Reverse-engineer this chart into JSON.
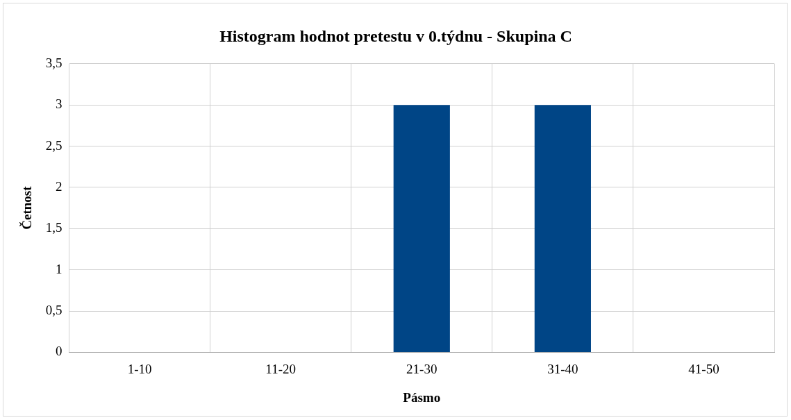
{
  "chart_data": {
    "type": "bar",
    "title": "Histogram hodnot pretestu v 0.týdnu - Skupina C",
    "xlabel": "Pásmo",
    "ylabel": "Četnost",
    "categories": [
      "1-10",
      "11-20",
      "21-30",
      "31-40",
      "41-50"
    ],
    "values": [
      0,
      0,
      3,
      3,
      0
    ],
    "color": "#004586",
    "ylim": [
      0,
      3.5
    ],
    "yticks": [
      0,
      {
        "value": 0.5,
        "label": "0,5"
      },
      1,
      {
        "value": 1.5,
        "label": "1,5"
      },
      2,
      {
        "value": 2.5,
        "label": "2,5"
      },
      3,
      {
        "value": 3.5,
        "label": "3,5"
      }
    ],
    "grid": true,
    "legend": false
  }
}
